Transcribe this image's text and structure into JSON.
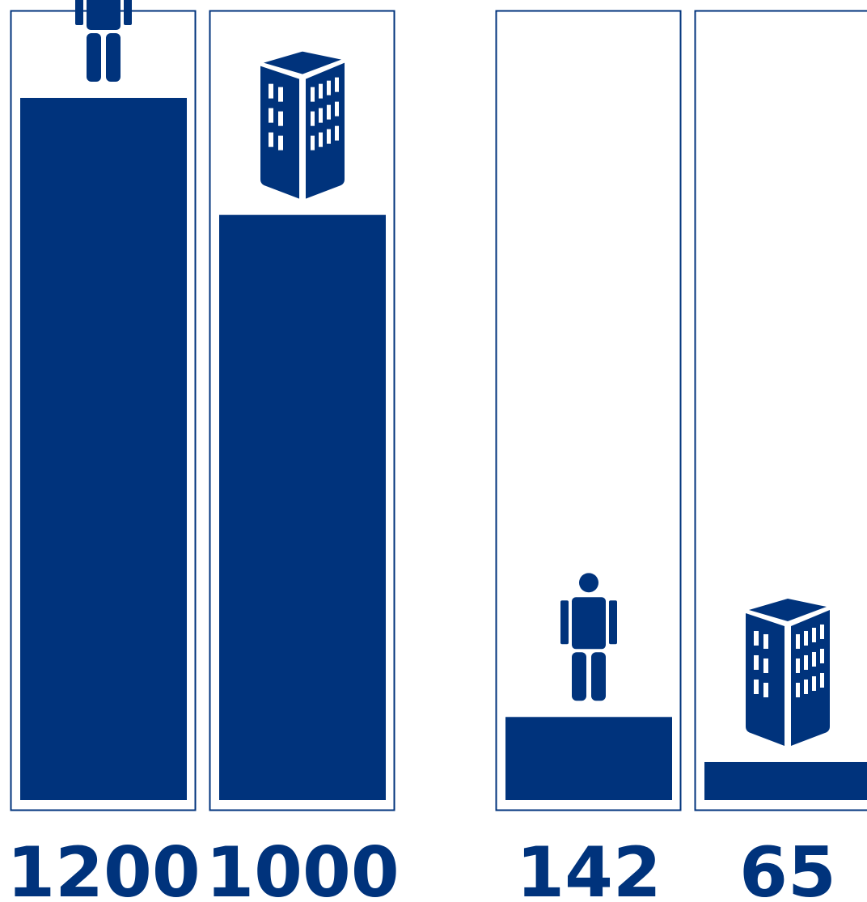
{
  "colors": {
    "primary": "#00337c",
    "background": "#ffffff"
  },
  "chart_data": {
    "type": "bar",
    "categories": [
      "person",
      "building",
      "person",
      "building"
    ],
    "icons": [
      "person-icon",
      "building-icon",
      "person-icon",
      "building-icon"
    ],
    "values": [
      1200,
      1000,
      142,
      65
    ],
    "value_labels": [
      "1200",
      "1000",
      "142",
      "65"
    ],
    "groups": [
      {
        "columns": [
          0,
          1
        ],
        "max": 1200
      },
      {
        "columns": [
          2,
          3
        ],
        "max": 1200
      }
    ],
    "ylim": [
      0,
      1200
    ],
    "grid": false,
    "title": "",
    "xlabel": "",
    "ylabel": ""
  }
}
